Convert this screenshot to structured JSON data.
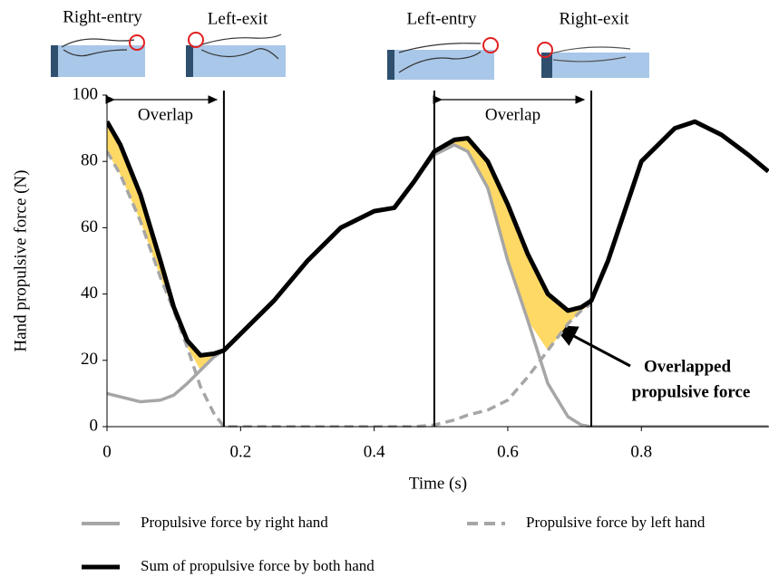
{
  "chart_data": {
    "type": "line",
    "x_label": "Time (s)",
    "y_label": "Hand propulsive force (N)",
    "x": [
      0,
      0.02,
      0.05,
      0.08,
      0.1,
      0.12,
      0.14,
      0.16,
      0.175,
      0.2,
      0.25,
      0.3,
      0.35,
      0.4,
      0.43,
      0.46,
      0.49,
      0.52,
      0.54,
      0.57,
      0.6,
      0.63,
      0.66,
      0.69,
      0.71,
      0.725,
      0.75,
      0.8,
      0.85,
      0.88,
      0.92,
      0.96,
      0.99
    ],
    "series": [
      {
        "name": "Propulsive force by right hand",
        "color": "#a6a6a6",
        "dash": false,
        "values": [
          10,
          9,
          7.5,
          8,
          9.5,
          13,
          17,
          21,
          23,
          28,
          38,
          50,
          60,
          65,
          66,
          74,
          82,
          85,
          83,
          72,
          50,
          32,
          13,
          3,
          0.5,
          0,
          0,
          0,
          0,
          0,
          0,
          0,
          0
        ]
      },
      {
        "name": "Propulsive force by left hand",
        "color": "#a6a6a6",
        "dash": true,
        "values": [
          83,
          76,
          62,
          45,
          35,
          24,
          12,
          4,
          0,
          0,
          0,
          0,
          0,
          0,
          0,
          0,
          0.5,
          2,
          3.5,
          5,
          8,
          15,
          23,
          31,
          35,
          37,
          null,
          null,
          null,
          null,
          null,
          null,
          null
        ]
      },
      {
        "name": "Sum of propulsive force by both hand",
        "color": "#000000",
        "dash": false,
        "values": [
          92,
          85,
          70,
          50,
          36,
          26,
          21.5,
          22,
          23,
          28,
          38,
          50,
          60,
          65,
          66,
          74,
          83,
          86.5,
          87,
          80,
          67,
          52,
          40,
          35,
          36,
          38,
          50,
          80,
          90,
          92,
          88,
          82,
          77
        ]
      }
    ],
    "xlim": [
      0,
      0.99
    ],
    "ylim": [
      0,
      100
    ],
    "xticks": [
      0,
      0.2,
      0.4,
      0.6,
      0.8
    ],
    "yticks": [
      0,
      20,
      40,
      60,
      80,
      100
    ],
    "fill_color": "#ffd966",
    "overlap_regions": [
      [
        0,
        0.175
      ],
      [
        0.49,
        0.725
      ]
    ],
    "overlap_label": "Overlap",
    "phase_labels": [
      "Right-entry",
      "Left-exit",
      "Left-entry",
      "Right-exit"
    ],
    "annotation": [
      "Overlapped",
      "propulsive force"
    ]
  }
}
